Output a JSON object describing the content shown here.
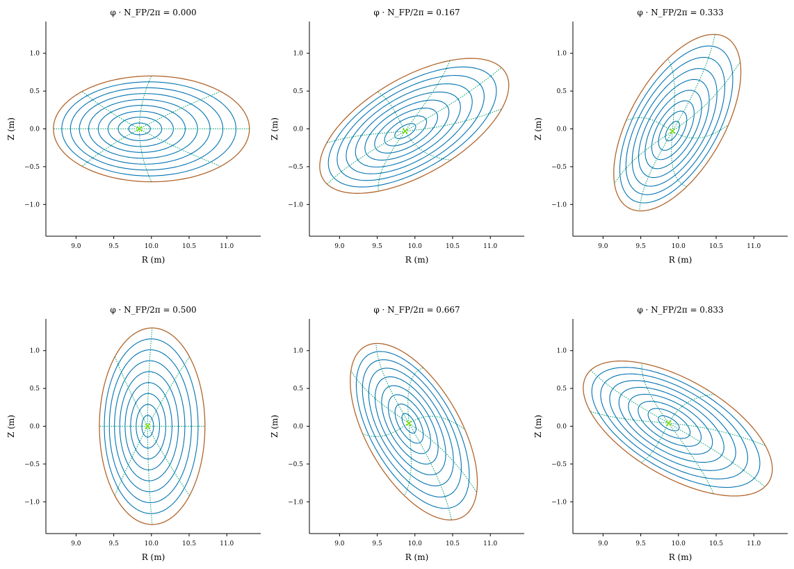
{
  "chart_data": {
    "type": "line",
    "layout": "2x3 grid of flux-surface cross-section panels",
    "shared": {
      "xlabel": "R (m)",
      "ylabel": "Z (m)",
      "xlim": [
        8.6,
        11.45
      ],
      "ylim": [
        -1.42,
        1.42
      ],
      "xticks": [
        9.0,
        9.5,
        10.0,
        10.5,
        11.0
      ],
      "yticks": [
        -1.0,
        -0.5,
        0.0,
        0.5,
        1.0
      ],
      "xtick_labels": [
        "9.0",
        "9.5",
        "10.0",
        "10.5",
        "11.0"
      ],
      "ytick_labels": [
        "−1.0",
        "−0.5",
        "0.0",
        "0.5",
        "1.0"
      ],
      "grid": false
    },
    "colors": {
      "flux_surfaces": "#0072b2",
      "boundary": "#b0652c",
      "theta_lines": "#009e73",
      "magnetic_axis": "#7fdf00"
    },
    "series": [
      {
        "name": "flux surfaces",
        "style": "solid",
        "color": "#0072b2"
      },
      {
        "name": "boundary",
        "style": "solid",
        "color": "#b0652c"
      },
      {
        "name": "poloidal angle lines",
        "style": "dotted",
        "color": "#009e73"
      },
      {
        "name": "magnetic axis",
        "style": "marker-x",
        "color": "#7fdf00"
      }
    ],
    "panels": [
      {
        "title": "φ · N_FP/2π = 0.000",
        "phi_fraction": 0.0,
        "axis": {
          "R": 9.84,
          "Z": 0.0
        },
        "boundary": {
          "a_m": 1.3,
          "b_m": 0.7,
          "tilt_deg": 0
        },
        "n_surfaces": 9,
        "n_theta_lines": 8,
        "theta_offset_deg": 0,
        "axis_shift_m": 0.16
      },
      {
        "title": "φ · N_FP/2π = 0.167",
        "phi_fraction": 0.167,
        "axis": {
          "R": 9.87,
          "Z": -0.03
        },
        "boundary": {
          "a_m": 1.4,
          "b_m": 0.64,
          "tilt_deg": 30
        },
        "n_surfaces": 9,
        "n_theta_lines": 8,
        "theta_offset_deg": 8,
        "axis_shift_m": 0.14
      },
      {
        "title": "φ · N_FP/2π = 0.333",
        "phi_fraction": 0.333,
        "axis": {
          "R": 9.92,
          "Z": -0.03
        },
        "boundary": {
          "a_m": 1.3,
          "b_m": 0.62,
          "tilt_deg": 60
        },
        "n_surfaces": 9,
        "n_theta_lines": 8,
        "theta_offset_deg": 14,
        "axis_shift_m": 0.13
      },
      {
        "title": "φ · N_FP/2π = 0.500",
        "phi_fraction": 0.5,
        "axis": {
          "R": 9.95,
          "Z": 0.0
        },
        "boundary": {
          "a_m": 0.7,
          "b_m": 1.3,
          "tilt_deg": 0
        },
        "n_surfaces": 9,
        "n_theta_lines": 8,
        "theta_offset_deg": 0,
        "axis_shift_m": 0.06
      },
      {
        "title": "φ · N_FP/2π = 0.667",
        "phi_fraction": 0.667,
        "axis": {
          "R": 9.92,
          "Z": 0.04
        },
        "boundary": {
          "a_m": 1.3,
          "b_m": 0.62,
          "tilt_deg": -60
        },
        "n_surfaces": 9,
        "n_theta_lines": 8,
        "theta_offset_deg": -14,
        "axis_shift_m": 0.13
      },
      {
        "title": "φ · N_FP/2π = 0.833",
        "phi_fraction": 0.833,
        "axis": {
          "R": 9.87,
          "Z": 0.04
        },
        "boundary": {
          "a_m": 1.4,
          "b_m": 0.64,
          "tilt_deg": -30
        },
        "n_surfaces": 9,
        "n_theta_lines": 8,
        "theta_offset_deg": -8,
        "axis_shift_m": 0.14
      }
    ]
  }
}
